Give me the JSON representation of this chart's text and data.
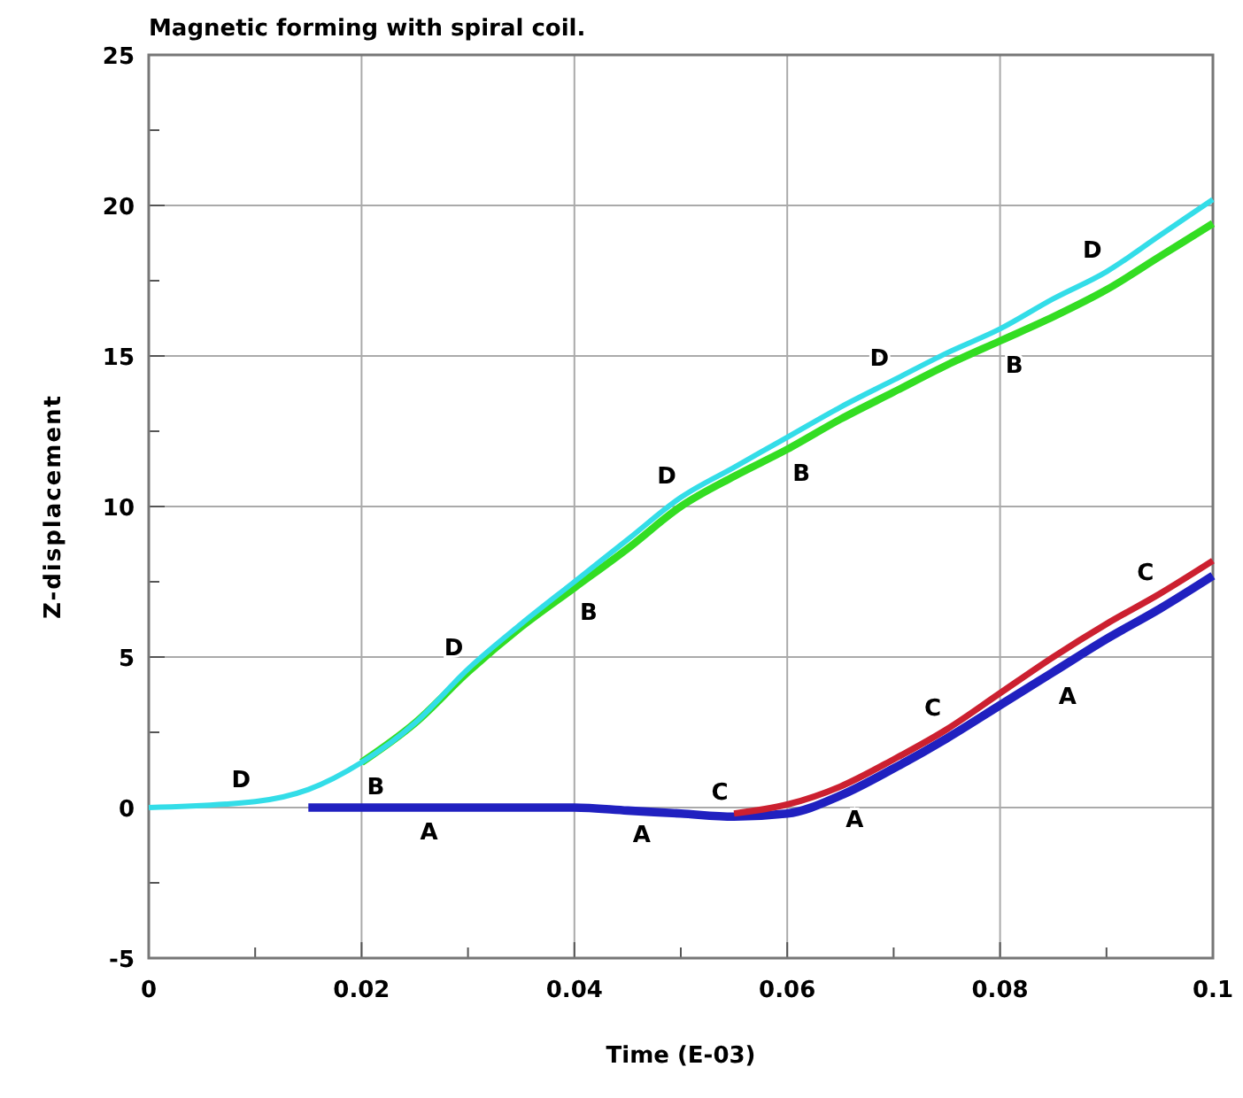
{
  "chart_data": {
    "type": "line",
    "title": "Magnetic forming with spiral coil.",
    "xlabel": "Time (E-03)",
    "ylabel": "Z-displacement",
    "xlim": [
      0,
      0.1
    ],
    "ylim": [
      -5,
      25
    ],
    "xticks": [
      0,
      {
        "value": 0.01,
        "label": null
      },
      0.02,
      {
        "value": 0.03,
        "label": null
      },
      0.04,
      {
        "value": 0.05,
        "label": null
      },
      0.06,
      {
        "value": 0.07,
        "label": null
      },
      0.08,
      {
        "value": 0.09,
        "label": null
      },
      {
        "value": 0.1,
        "label": "0.1"
      }
    ],
    "yticks": [
      -5,
      {
        "value": -2.5,
        "label": null
      },
      0,
      {
        "value": 2.5,
        "label": null
      },
      5,
      {
        "value": 7.5,
        "label": null
      },
      10,
      {
        "value": 12.5,
        "label": null
      },
      15,
      {
        "value": 17.5,
        "label": null
      },
      20,
      {
        "value": 22.5,
        "label": null
      },
      25
    ],
    "grid": true,
    "line_style": "solid",
    "x": [
      0,
      0.01,
      0.015,
      0.02,
      0.025,
      0.03,
      0.035,
      0.04,
      0.045,
      0.05,
      0.055,
      0.06,
      0.065,
      0.07,
      0.075,
      0.08,
      0.085,
      0.09,
      0.095,
      0.1
    ],
    "series": [
      {
        "name": "A",
        "color": "#2020c0",
        "values": [
          null,
          null,
          0,
          0,
          0,
          0,
          0,
          0,
          -0.1,
          -0.2,
          -0.3,
          -0.2,
          0.4,
          1.3,
          2.3,
          3.4,
          4.5,
          5.6,
          6.6,
          7.7
        ]
      },
      {
        "name": "B",
        "color": "#33dd22",
        "values": [
          null,
          null,
          null,
          1.5,
          2.8,
          4.5,
          6,
          7.3,
          8.6,
          10,
          11,
          11.9,
          12.9,
          13.8,
          14.7,
          15.5,
          16.3,
          17.2,
          18.3,
          19.4
        ]
      },
      {
        "name": "C",
        "color": "#cc2030",
        "values": [
          null,
          null,
          null,
          null,
          null,
          null,
          null,
          null,
          null,
          null,
          -0.2,
          0.1,
          0.7,
          1.6,
          2.6,
          3.8,
          5,
          6.1,
          7.1,
          8.2
        ]
      },
      {
        "name": "D",
        "color": "#33dde8",
        "values": [
          0,
          0.2,
          0.6,
          1.5,
          2.8,
          4.6,
          6.1,
          7.5,
          8.9,
          10.3,
          11.3,
          12.3,
          13.3,
          14.2,
          15.1,
          15.9,
          16.9,
          17.8,
          19,
          20.2
        ]
      }
    ]
  }
}
